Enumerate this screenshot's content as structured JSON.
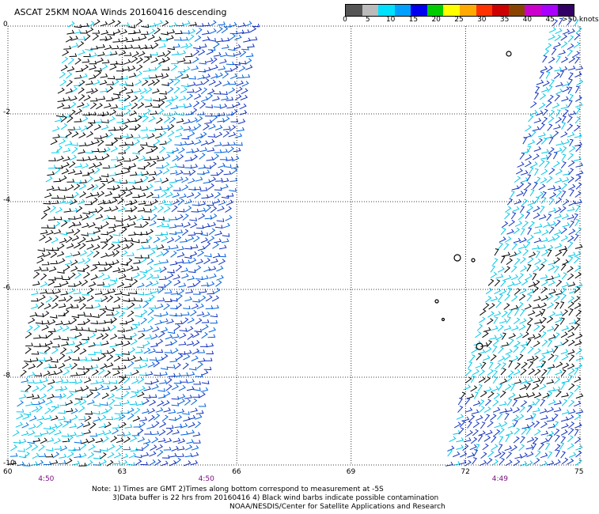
{
  "title": "ASCAT 25KM NOAA Winds 20160416 descending",
  "colorbar": {
    "labels": [
      "0",
      "5",
      "10",
      "15",
      "20",
      "25",
      "30",
      "35",
      "40",
      "45",
      ">50 knots"
    ],
    "colors": [
      "#555555",
      "#bbbbbb",
      "#00e0ff",
      "#00a0ff",
      "#0000ee",
      "#00cc00",
      "#ffff00",
      "#ffaa00",
      "#ff3300",
      "#cc0000",
      "#884400",
      "#cc00cc",
      "#aa00ff",
      "#330066"
    ]
  },
  "map": {
    "lat_labels": [
      "0",
      "-2",
      "-4",
      "-6",
      "-8",
      "-10"
    ],
    "lon_labels": [
      "60",
      "63",
      "66",
      "69",
      "72",
      "75"
    ],
    "time_labels": [
      {
        "text": "4:50",
        "lon": 61
      },
      {
        "text": "4:50",
        "lon": 65.2
      },
      {
        "text": "4:49",
        "lon": 72.9
      }
    ],
    "lon_range": [
      60,
      75
    ],
    "lat_range": [
      0,
      -10
    ],
    "grid": "dotted"
  },
  "notes": {
    "line1": "Note: 1) Times are GMT 2)Times along bottom correspond to measurement at -5S",
    "line2": "3)Data buffer is 22 hrs from 20160416 4) Black wind barbs indicate possible contamination",
    "line3": "NOAA/NESDIS/Center for Satellite Applications and Research"
  }
}
